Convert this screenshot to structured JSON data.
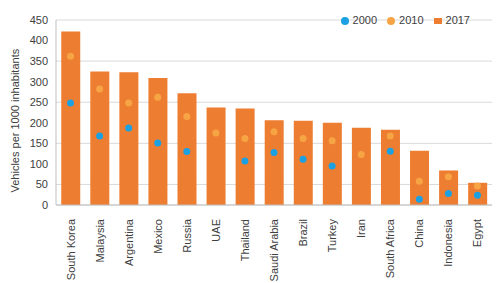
{
  "chart_data": {
    "type": "bar",
    "y_label": "Vehicles per 1000 inhabitants",
    "categories": [
      "South Korea",
      "Malaysia",
      "Argentina",
      "Mexico",
      "Russia",
      "UAE",
      "Thailand",
      "Saudi Arabia",
      "Brazil",
      "Turkey",
      "Iran",
      "South Africa",
      "China",
      "Indonesia",
      "Egypt"
    ],
    "series": [
      {
        "name": "2000",
        "type": "scatter",
        "marker": "circle",
        "color": "#1ba1e2",
        "values": [
          248,
          168,
          187,
          151,
          130,
          null,
          107,
          128,
          111,
          95,
          null,
          131,
          14,
          28,
          24
        ]
      },
      {
        "name": "2010",
        "type": "scatter",
        "marker": "circle",
        "color": "#f7a444",
        "values": [
          362,
          282,
          248,
          262,
          215,
          175,
          162,
          178,
          162,
          156,
          123,
          168,
          58,
          69,
          46
        ]
      },
      {
        "name": "2017",
        "type": "bar",
        "color": "#ed7d31",
        "values": [
          422,
          325,
          323,
          309,
          272,
          237,
          235,
          206,
          205,
          200,
          188,
          183,
          132,
          84,
          54
        ]
      }
    ],
    "ylim": [
      0,
      450
    ],
    "yticks": [
      0,
      50,
      100,
      150,
      200,
      250,
      300,
      350,
      400,
      450
    ],
    "grid": true,
    "legend": "upper right"
  }
}
